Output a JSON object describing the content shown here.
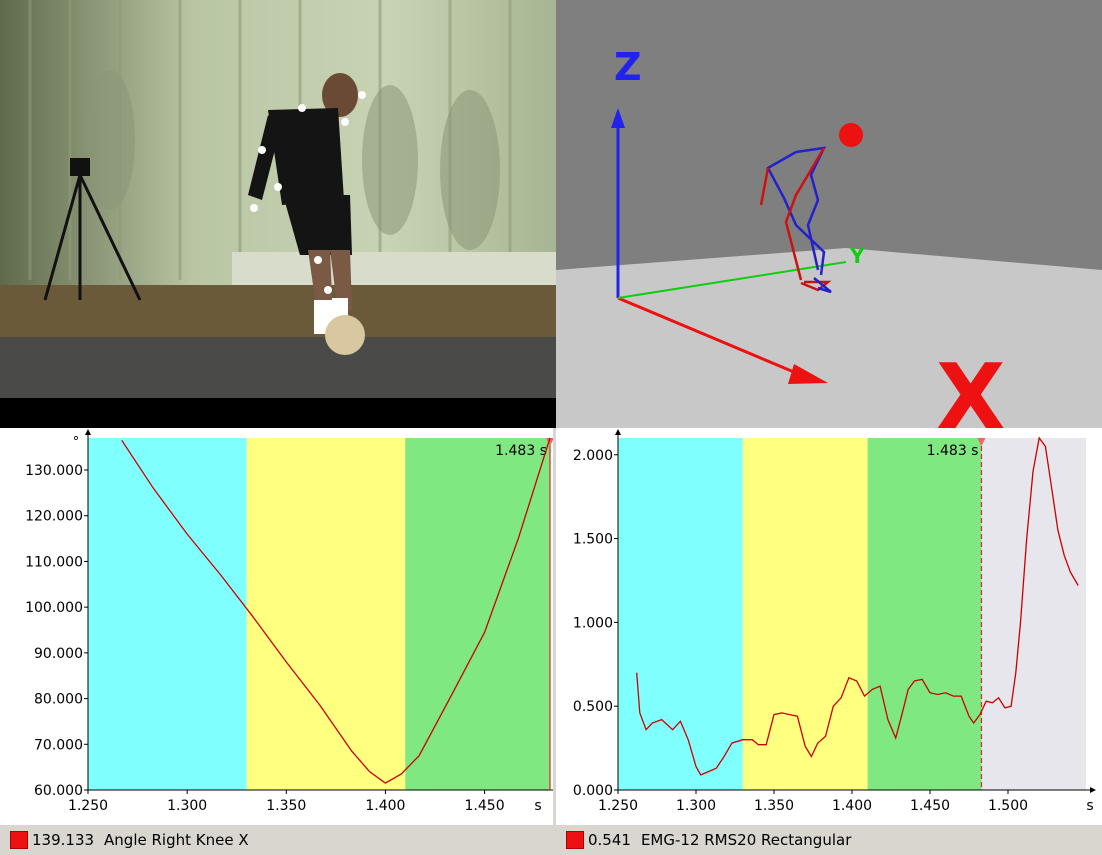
{
  "scene": {
    "axis_z_label": "Z",
    "axis_y_label": "Y",
    "axis_x_label": "X",
    "colors": {
      "background": "#7f7f7f",
      "floor": "#c8c8c8",
      "z_axis": "#2222ee",
      "x_axis": "#ee1111",
      "y_axis": "#11cc11",
      "marker": "#ee1111"
    }
  },
  "chart_left": {
    "time_readout": "1.483 s",
    "y_unit_label": "°",
    "x_unit_label": "s",
    "status": {
      "value": "139.133",
      "name": "Angle Right Knee X",
      "color": "#ee1111"
    }
  },
  "chart_right": {
    "time_readout": "1.483 s",
    "x_unit_label": "s",
    "status": {
      "value": "0.541",
      "name": "EMG-12 RMS20 Rectangular",
      "color": "#ee1111"
    }
  },
  "chart_data": [
    {
      "type": "line",
      "title": "",
      "xlim": [
        1.25,
        1.483
      ],
      "ylim": [
        60,
        137
      ],
      "x_ticks": [
        "1.250",
        "1.300",
        "1.350",
        "1.400",
        "1.450",
        "s"
      ],
      "y_ticks": [
        "60.000",
        "70.000",
        "80.000",
        "90.000",
        "100.000",
        "110.000",
        "120.000",
        "130.000"
      ],
      "x_tick_values": [
        1.25,
        1.3,
        1.35,
        1.4,
        1.45
      ],
      "y_tick_values": [
        60,
        70,
        80,
        90,
        100,
        110,
        120,
        130
      ],
      "phases": [
        {
          "from": 1.25,
          "to": 1.33,
          "color": "#80ffff"
        },
        {
          "from": 1.33,
          "to": 1.41,
          "color": "#ffff80"
        },
        {
          "from": 1.41,
          "to": 1.483,
          "color": "#80e880"
        }
      ],
      "cursor_x": 1.483,
      "series": [
        {
          "color": "#cc0000",
          "x": [
            1.267,
            1.283,
            1.3,
            1.317,
            1.333,
            1.35,
            1.367,
            1.383,
            1.392,
            1.4,
            1.408,
            1.417,
            1.433,
            1.45,
            1.467,
            1.483
          ],
          "y": [
            136.5,
            126,
            116,
            107,
            98,
            88,
            78.5,
            68.5,
            64,
            61.5,
            63.5,
            67.5,
            80.5,
            94.5,
            115,
            137
          ]
        }
      ]
    },
    {
      "type": "line",
      "title": "",
      "xlim": [
        1.25,
        1.55
      ],
      "ylim": [
        0,
        2.1
      ],
      "x_ticks": [
        "1.250",
        "1.300",
        "1.350",
        "1.400",
        "1.450",
        "1.500",
        "s"
      ],
      "y_ticks": [
        "0.000",
        "0.500",
        "1.000",
        "1.500",
        "2.000"
      ],
      "x_tick_values": [
        1.25,
        1.3,
        1.35,
        1.4,
        1.45,
        1.5
      ],
      "y_tick_values": [
        0,
        0.5,
        1.0,
        1.5,
        2.0
      ],
      "phases": [
        {
          "from": 1.25,
          "to": 1.33,
          "color": "#80ffff"
        },
        {
          "from": 1.33,
          "to": 1.41,
          "color": "#ffff80"
        },
        {
          "from": 1.41,
          "to": 1.483,
          "color": "#80e880"
        },
        {
          "from": 1.483,
          "to": 1.55,
          "color": "#e6e6ec"
        }
      ],
      "cursor_x": 1.483,
      "series": [
        {
          "color": "#cc0000",
          "x": [
            1.262,
            1.264,
            1.268,
            1.272,
            1.278,
            1.285,
            1.29,
            1.295,
            1.3,
            1.303,
            1.308,
            1.313,
            1.318,
            1.323,
            1.33,
            1.336,
            1.34,
            1.345,
            1.35,
            1.355,
            1.36,
            1.365,
            1.37,
            1.374,
            1.378,
            1.383,
            1.388,
            1.393,
            1.398,
            1.403,
            1.408,
            1.413,
            1.418,
            1.423,
            1.428,
            1.432,
            1.436,
            1.44,
            1.445,
            1.45,
            1.455,
            1.46,
            1.465,
            1.47,
            1.475,
            1.478,
            1.482,
            1.486,
            1.49,
            1.494,
            1.498,
            1.502,
            1.505,
            1.508,
            1.512,
            1.516,
            1.52,
            1.524,
            1.528,
            1.532,
            1.536,
            1.54,
            1.545
          ],
          "y": [
            0.7,
            0.46,
            0.36,
            0.4,
            0.42,
            0.36,
            0.41,
            0.3,
            0.14,
            0.09,
            0.11,
            0.13,
            0.2,
            0.28,
            0.3,
            0.3,
            0.27,
            0.27,
            0.45,
            0.46,
            0.45,
            0.44,
            0.26,
            0.2,
            0.28,
            0.32,
            0.5,
            0.55,
            0.67,
            0.65,
            0.56,
            0.6,
            0.62,
            0.42,
            0.31,
            0.45,
            0.6,
            0.65,
            0.66,
            0.58,
            0.57,
            0.58,
            0.56,
            0.56,
            0.44,
            0.4,
            0.45,
            0.53,
            0.52,
            0.55,
            0.49,
            0.5,
            0.7,
            1.0,
            1.5,
            1.9,
            2.1,
            2.05,
            1.8,
            1.55,
            1.4,
            1.3,
            1.22
          ]
        }
      ]
    }
  ]
}
